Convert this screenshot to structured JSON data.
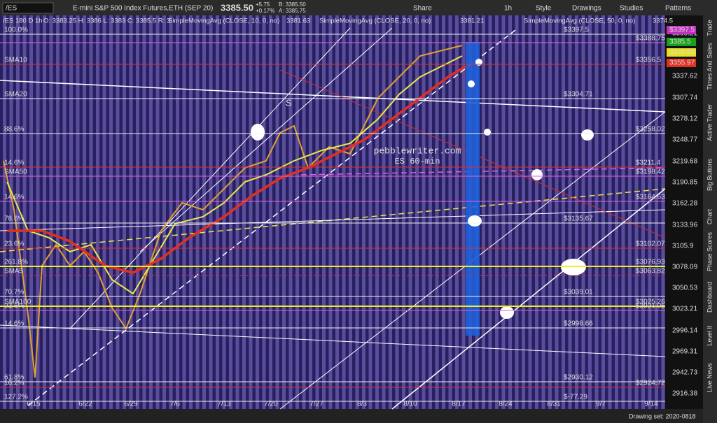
{
  "toolbar": {
    "symbol": "/ES",
    "description": "E-mini S&P 500 Index Futures,ETH (SEP 20)",
    "last": "3385.50",
    "change": "+5.75",
    "change_pct": "+0.17%",
    "bid": "B: 3385.50",
    "ask": "A: 3385.75",
    "buttons": [
      "Share",
      "1h",
      "Style",
      "Drawings",
      "Studies",
      "Patterns"
    ]
  },
  "study_line": {
    "period": "/ES 180 D 1h",
    "ohlc": "O: 3383.25  H: 3386  L: 3383  C: 3385.5  R: 3",
    "sma10": "SimpleMovingAvg (CLOSE, 10, 0, no)",
    "sma10_value": "3381.63",
    "sma20": "SimpleMovingAvg (CLOSE, 20, 0, no)",
    "sma20_value": "3381.21",
    "sma50": "SimpleMovingAvg (CLOSE, 50, 0, no)",
    "sma50_value": "3374.5"
  },
  "price_axis": [
    "3398.21",
    "3337.62",
    "3307.74",
    "3278.12",
    "3248.77",
    "3219.68",
    "3190.85",
    "3162.28",
    "3133.96",
    "3105.9",
    "3078.09",
    "3050.53",
    "3023.21",
    "2996.14",
    "2969.31",
    "2942.73",
    "2916.38"
  ],
  "price_boxes": [
    "$3397.5",
    "3385.5",
    "3370.95",
    "3355.97"
  ],
  "dates": [
    "6/15",
    "6/22",
    "6/29",
    "7/6",
    "7/13",
    "7/20",
    "7/27",
    "8/3",
    "8/10",
    "8/17",
    "8/24",
    "8/31",
    "9/7",
    "9/14"
  ],
  "levels": [
    {
      "left": "100.0%",
      "right": "$3397.5"
    },
    {
      "left": "",
      "right": "$3388.75"
    },
    {
      "left": "SMA10",
      "right": "$3356.5"
    },
    {
      "left": "SMA20",
      "right": "$3304.71"
    },
    {
      "left": "88.6%",
      "right": "$3258.02"
    },
    {
      "left": "14.6%",
      "right": "$3211.4"
    },
    {
      "left": "SMA50",
      "right": "$3198.42"
    },
    {
      "left": "14.6%",
      "right": "$3164.63"
    },
    {
      "left": "78.6%",
      "right": "$3135.67"
    },
    {
      "left": "23.6%",
      "right": "$3102.07"
    },
    {
      "left": "261.8%",
      "right": "$3076.93"
    },
    {
      "left": "SMA5",
      "right": "$3063.82"
    },
    {
      "left": "70.7%",
      "right": "$3039.01"
    },
    {
      "left": "SMA100",
      "right": "$3025.26"
    },
    {
      "left": "23.6%",
      "right": "$3021.05"
    },
    {
      "left": "14.6%",
      "right": "$2998.66"
    },
    {
      "left": "61.8%",
      "right": "$2930.12"
    },
    {
      "left": "16.2%",
      "right": "$2924.72"
    },
    {
      "left": "127.2%",
      "right": "$-77.29"
    }
  ],
  "watermark": [
    "pebblewriter.com",
    "ES 60-min"
  ],
  "marker": "S",
  "side_tabs": [
    "Trade",
    "Times And Sales",
    "Active Trader",
    "Big Buttons",
    "Chart",
    "Phase Scores",
    "Dashboard",
    "Level II",
    "Live News"
  ],
  "footer": "Drawing set: 2020-0818"
}
